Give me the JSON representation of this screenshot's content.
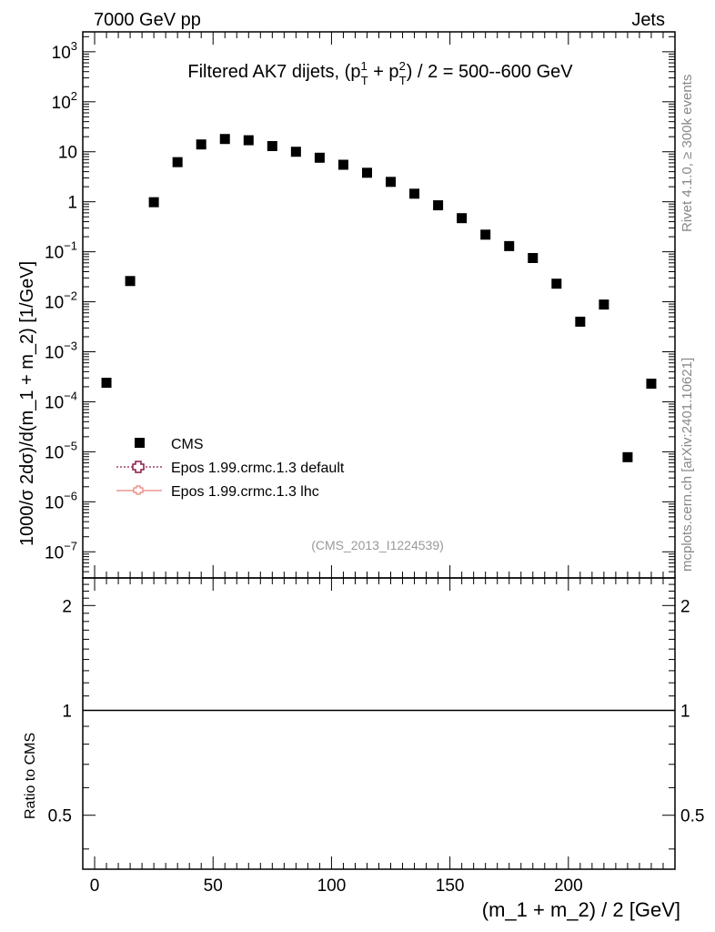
{
  "header": {
    "energy_label": "7000 GeV pp",
    "process_label": "Jets"
  },
  "side_labels": {
    "rivet": "Rivet 4.1.0, ≥ 300k events",
    "mcplots": "mcplots.cern.ch [arXiv:2401.10621]"
  },
  "chart_data": {
    "type": "scatter",
    "title": "Filtered AK7 dijets, (p_T^1 + p_T^2) / 2 = 500--600 GeV",
    "title_parts": {
      "prefix": "Filtered AK7 dijets, (p",
      "sup1": "1",
      "sub1": "T",
      "middle": " + p",
      "sup2": "2",
      "sub2": "T",
      "suffix": ") / 2 = 500--600 GeV"
    },
    "analysis_id": "(CMS_2013_I1224539)",
    "xlabel": "(m_1 + m_2) / 2 [GeV]",
    "ylabel": "1000/σ  2dσ)/d(m_1 + m_2) [1/GeV]",
    "ratio_ylabel": "Ratio to CMS",
    "xlim": [
      -5,
      245
    ],
    "ylim": [
      3e-08,
      2500
    ],
    "ratio_ylim": [
      0.35,
      2.4
    ],
    "log_y": true,
    "x_ticks": [
      0,
      50,
      100,
      150,
      200
    ],
    "x_tick_labels": [
      "0",
      "50",
      "100",
      "150",
      "200"
    ],
    "y_ticks": [
      1e-07,
      1e-06,
      1e-05,
      0.0001,
      0.001,
      0.01,
      0.1,
      1,
      10,
      100,
      1000
    ],
    "y_tick_labels": [
      {
        "base": "10",
        "exp": "−7"
      },
      {
        "base": "10",
        "exp": "−6"
      },
      {
        "base": "10",
        "exp": "−5"
      },
      {
        "base": "10",
        "exp": "−4"
      },
      {
        "base": "10",
        "exp": "−3"
      },
      {
        "base": "10",
        "exp": "−2"
      },
      {
        "base": "10",
        "exp": "−1"
      },
      {
        "base": "1",
        "exp": ""
      },
      {
        "base": "10",
        "exp": ""
      },
      {
        "base": "10",
        "exp": "2"
      },
      {
        "base": "10",
        "exp": "3"
      }
    ],
    "ratio_ticks": [
      0.5,
      1,
      2
    ],
    "ratio_tick_labels": [
      "0.5",
      "1",
      "2"
    ],
    "legend_position": "lower-left",
    "series": [
      {
        "name": "CMS",
        "marker": "square",
        "color": "#000000",
        "x": [
          5,
          15,
          25,
          35,
          45,
          55,
          65,
          75,
          85,
          95,
          105,
          115,
          125,
          135,
          145,
          155,
          165,
          175,
          185,
          195,
          205,
          215,
          225,
          235
        ],
        "y": [
          0.00024,
          0.026,
          0.98,
          6.2,
          14,
          18,
          17,
          13,
          10,
          7.6,
          5.5,
          3.8,
          2.5,
          1.45,
          0.85,
          0.47,
          0.22,
          0.13,
          0.075,
          0.023,
          0.004,
          0.0088,
          7.8e-06,
          0.00023
        ]
      },
      {
        "name": "Epos 1.99.crmc.1.3 default",
        "marker": "open-cross",
        "color": "#8b1a4a",
        "line": "dotted"
      },
      {
        "name": "Epos 1.99.crmc.1.3 lhc",
        "marker": "open-cross",
        "color": "#e8827a",
        "line": "solid"
      }
    ]
  }
}
